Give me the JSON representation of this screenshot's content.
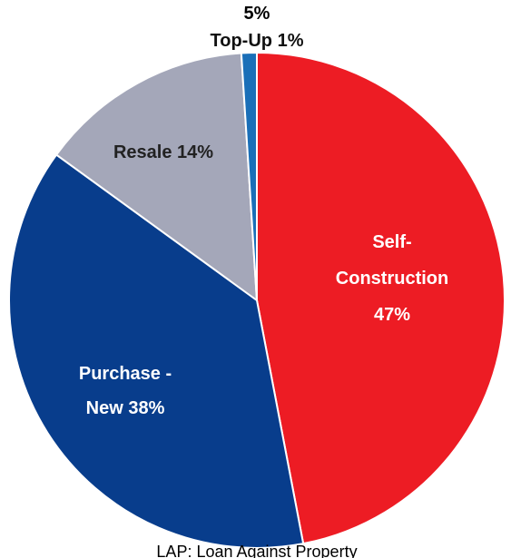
{
  "chart_data": {
    "type": "pie",
    "categories": [
      "Self-Construction",
      "Purchase - New",
      "Resale",
      "Top-Up"
    ],
    "values": [
      47,
      38,
      14,
      1
    ],
    "value_labels": [
      "47%",
      "38%",
      "14%",
      "1%"
    ],
    "colors": [
      "#ed1c24",
      "#083d8c",
      "#a4a7b9",
      "#1a6fb8"
    ],
    "annotations": [
      "5%",
      "LAP: Loan Against Property"
    ]
  }
}
